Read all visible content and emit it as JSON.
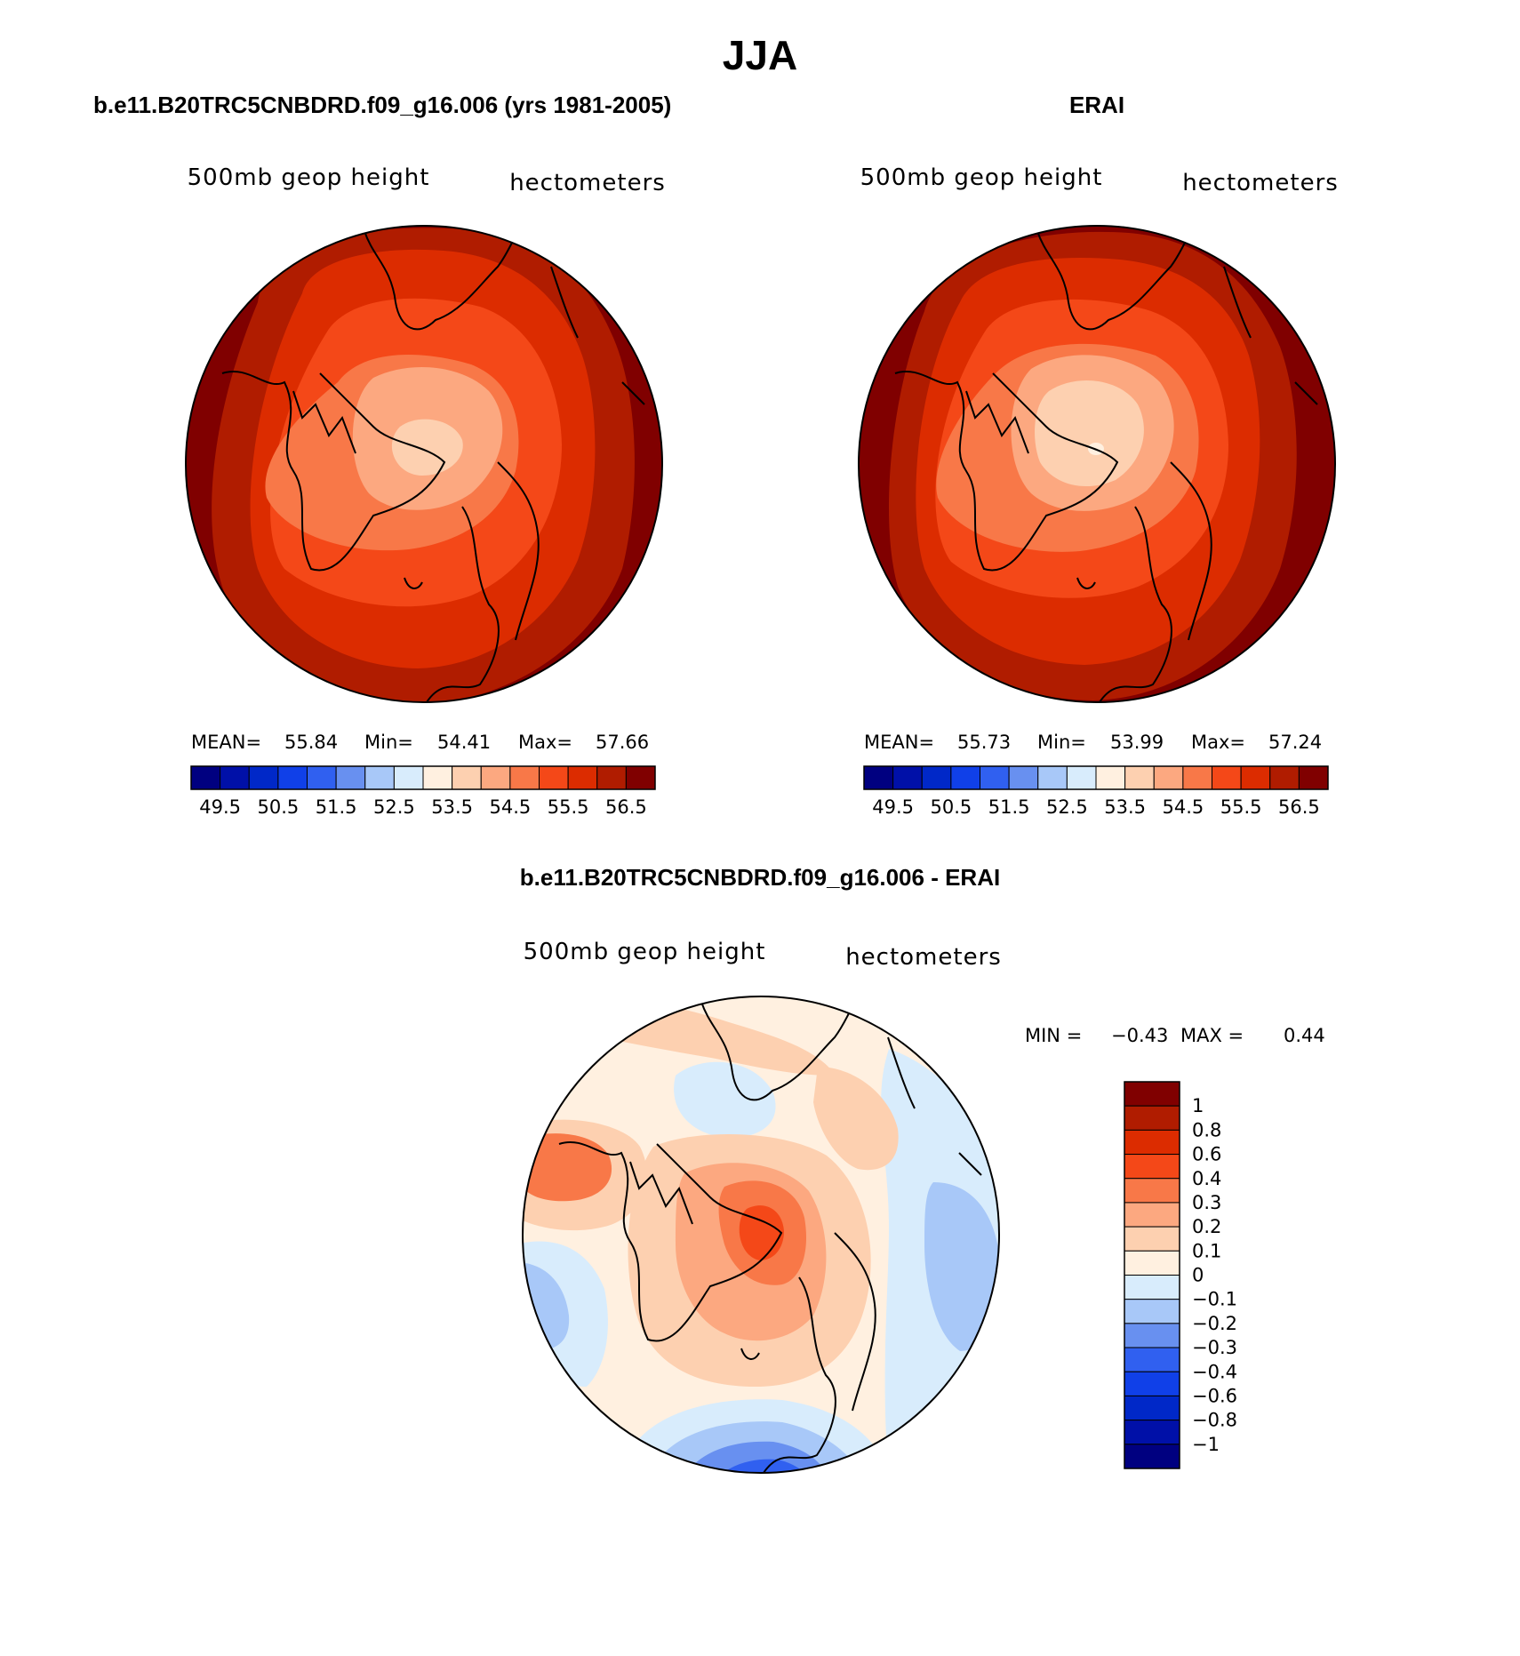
{
  "figure": {
    "title": "JJA",
    "panels": [
      {
        "id": "model",
        "title": "b.e11.B20TRC5CNBDRD.f09_g16.006 (yrs 1981-2005)",
        "left_label": "500mb geop height",
        "right_label": "hectometers",
        "stats": {
          "mean_label": "MEAN=",
          "mean": "55.84",
          "min_label": "Min=",
          "min": "54.41",
          "max_label": "Max=",
          "max": "57.66"
        },
        "colorbar": {
          "colors": [
            "#000080",
            "#0010a8",
            "#0028c8",
            "#1040e8",
            "#3060f0",
            "#6890f0",
            "#a8c8f8",
            "#d8ecfc",
            "#fff0e0",
            "#fdd0b0",
            "#fca880",
            "#f87848",
            "#f44818",
            "#dc2c00",
            "#b01c00",
            "#800000"
          ],
          "labels": [
            "49.5",
            "50.5",
            "51.5",
            "52.5",
            "53.5",
            "54.5",
            "55.5",
            "56.5"
          ]
        }
      },
      {
        "id": "obs",
        "title": "ERAI",
        "left_label": "500mb geop height",
        "right_label": "hectometers",
        "stats": {
          "mean_label": "MEAN=",
          "mean": "55.73",
          "min_label": "Min=",
          "min": "53.99",
          "max_label": "Max=",
          "max": "57.24"
        },
        "colorbar": {
          "colors": [
            "#000080",
            "#0010a8",
            "#0028c8",
            "#1040e8",
            "#3060f0",
            "#6890f0",
            "#a8c8f8",
            "#d8ecfc",
            "#fff0e0",
            "#fdd0b0",
            "#fca880",
            "#f87848",
            "#f44818",
            "#dc2c00",
            "#b01c00",
            "#800000"
          ],
          "labels": [
            "49.5",
            "50.5",
            "51.5",
            "52.5",
            "53.5",
            "54.5",
            "55.5",
            "56.5"
          ]
        }
      },
      {
        "id": "diff",
        "title": "b.e11.B20TRC5CNBDRD.f09_g16.006 - ERAI",
        "left_label": "500mb geop height",
        "right_label": "hectometers",
        "stats": {
          "min_label": "MIN =",
          "min": "−0.43",
          "max_label": "MAX =",
          "max": "0.44"
        },
        "colorbar": {
          "colors": [
            "#800000",
            "#b01c00",
            "#dc2c00",
            "#f44818",
            "#f87848",
            "#fca880",
            "#fdd0b0",
            "#fff0e0",
            "#d8ecfc",
            "#a8c8f8",
            "#6890f0",
            "#3060f0",
            "#1040e8",
            "#0028c8",
            "#0010a8",
            "#000080"
          ],
          "labels": [
            "1",
            "0.8",
            "0.6",
            "0.4",
            "0.3",
            "0.2",
            "0.1",
            "0",
            "−0.1",
            "−0.2",
            "−0.3",
            "−0.4",
            "−0.6",
            "−0.8",
            "−1"
          ]
        }
      }
    ]
  }
}
